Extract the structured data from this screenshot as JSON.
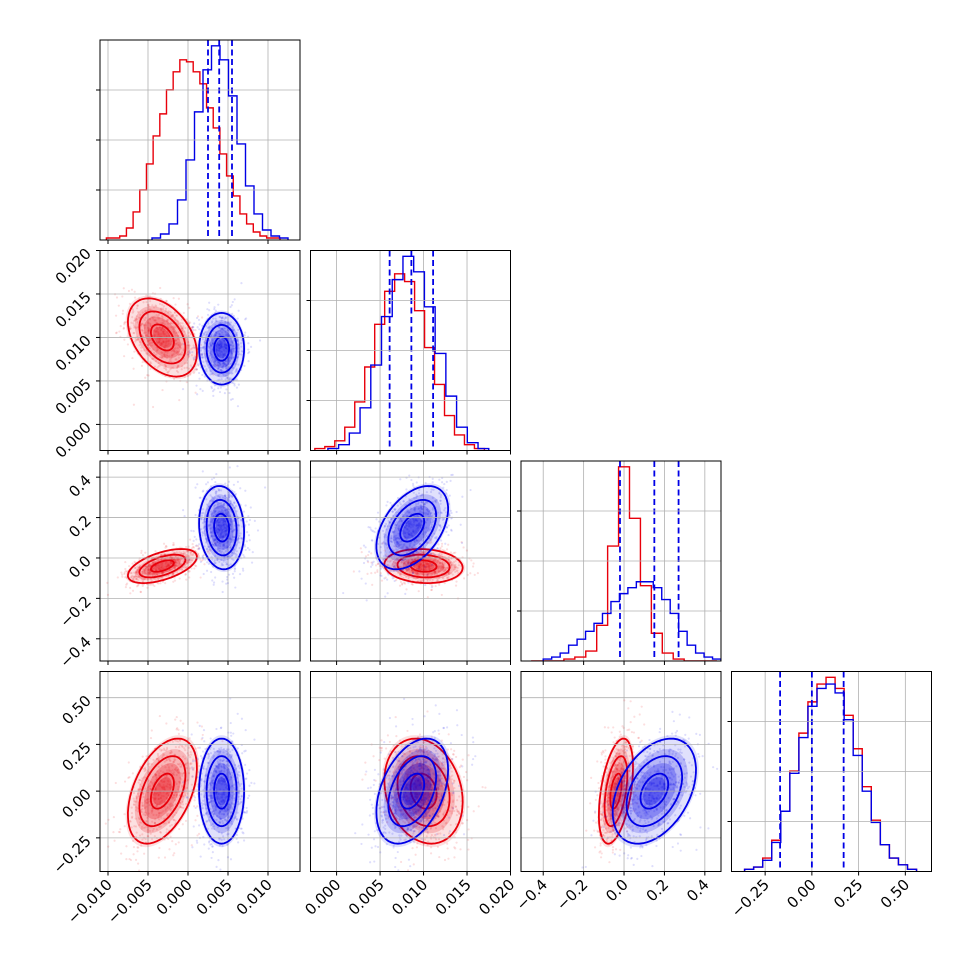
{
  "chart_data": {
    "type": "corner",
    "title": "",
    "grid": true,
    "colors": {
      "red": "#e8000b",
      "blue": "#0000e6"
    },
    "parameters": [
      {
        "range": [
          -0.011,
          0.014
        ],
        "ticks": [
          -0.01,
          -0.005,
          0.0,
          0.005,
          0.01
        ],
        "tick_labels": [
          "−0.010",
          "−0.005",
          "0.000",
          "0.005",
          "0.010"
        ]
      },
      {
        "range": [
          -0.003,
          0.02
        ],
        "ticks": [
          0.0,
          0.005,
          0.01,
          0.015,
          0.02
        ],
        "tick_labels": [
          "0.000",
          "0.005",
          "0.010",
          "0.015",
          "0.020"
        ]
      },
      {
        "range": [
          -0.51,
          0.48
        ],
        "ticks": [
          -0.4,
          -0.2,
          0.0,
          0.2,
          0.4
        ],
        "tick_labels": [
          "−0.4",
          "−0.2",
          "0.0",
          "0.2",
          "0.4"
        ]
      },
      {
        "range": [
          -0.43,
          0.64
        ],
        "ticks": [
          -0.25,
          0.0,
          0.25,
          0.5
        ],
        "tick_labels": [
          "−0.25",
          "0.00",
          "0.25",
          "0.50"
        ]
      }
    ],
    "series": [
      {
        "color": "red",
        "means": [
          -0.0032,
          0.01,
          -0.04,
          0.0
        ],
        "sds": [
          0.0023,
          0.0024,
          0.045,
          0.15
        ],
        "corr": [
          [
            1,
            -0.4,
            0.55,
            0.45
          ],
          [
            -0.4,
            1,
            -0.1,
            -0.2
          ],
          [
            0.55,
            -0.1,
            1,
            0.45
          ],
          [
            0.45,
            -0.2,
            0.45,
            1
          ]
        ],
        "hist_counts": [
          [
            1,
            1,
            2,
            6,
            14,
            25,
            38,
            52,
            63,
            75,
            84,
            90,
            89,
            84,
            78,
            66,
            56,
            43,
            32,
            22,
            13,
            8,
            4,
            2,
            1,
            1
          ],
          [
            1,
            2,
            5,
            12,
            25,
            43,
            65,
            82,
            91,
            87,
            72,
            53,
            34,
            18,
            8,
            3,
            1
          ],
          [
            0,
            0,
            0,
            1,
            2,
            5,
            18,
            58,
            98,
            72,
            38,
            14,
            4,
            1,
            0,
            0,
            0
          ],
          [
            1,
            2,
            6,
            14,
            27,
            45,
            62,
            76,
            84,
            87,
            82,
            70,
            55,
            38,
            23,
            12,
            6,
            3,
            1
          ]
        ],
        "hist_edges": [
          [
            -0.0102,
            0.0115
          ],
          [
            -0.0025,
            0.017
          ],
          [
            -0.46,
            0.46
          ],
          [
            -0.36,
            0.56
          ]
        ]
      },
      {
        "color": "blue",
        "means": [
          0.0042,
          0.0087,
          0.15,
          0.0
        ],
        "sds": [
          0.0015,
          0.0022,
          0.11,
          0.15
        ],
        "corr": [
          [
            1,
            0.0,
            -0.1,
            0.0
          ],
          [
            0.0,
            1,
            0.45,
            0.4
          ],
          [
            -0.1,
            0.45,
            1,
            0.4
          ],
          [
            0.0,
            0.4,
            0.4,
            1
          ]
        ],
        "hist_counts": [
          [
            1,
            3,
            8,
            20,
            40,
            64,
            85,
            97,
            90,
            72,
            48,
            27,
            13,
            5,
            2,
            1
          ],
          [
            1,
            3,
            9,
            22,
            44,
            69,
            88,
            100,
            92,
            74,
            50,
            28,
            12,
            4,
            1
          ],
          [
            1,
            2,
            4,
            8,
            11,
            15,
            19,
            24,
            30,
            34,
            37,
            40,
            40,
            37,
            31,
            24,
            15,
            8,
            4,
            2,
            1
          ],
          [
            1,
            2,
            5,
            13,
            27,
            44,
            60,
            74,
            82,
            84,
            80,
            68,
            52,
            36,
            22,
            12,
            6,
            3,
            1
          ]
        ],
        "hist_edges": [
          [
            -0.0045,
            0.0125
          ],
          [
            -0.001,
            0.0175
          ],
          [
            -0.4,
            0.48
          ],
          [
            -0.36,
            0.56
          ]
        ]
      }
    ],
    "quantile_lines": {
      "color": "blue",
      "values": [
        [
          0.0025,
          0.0039,
          0.0055
        ],
        [
          0.0061,
          0.0086,
          0.0111
        ],
        [
          -0.02,
          0.15,
          0.27
        ],
        [
          -0.17,
          0.0,
          0.17
        ]
      ]
    },
    "contour_levels": [
      0.5,
      1.0,
      1.5
    ]
  }
}
